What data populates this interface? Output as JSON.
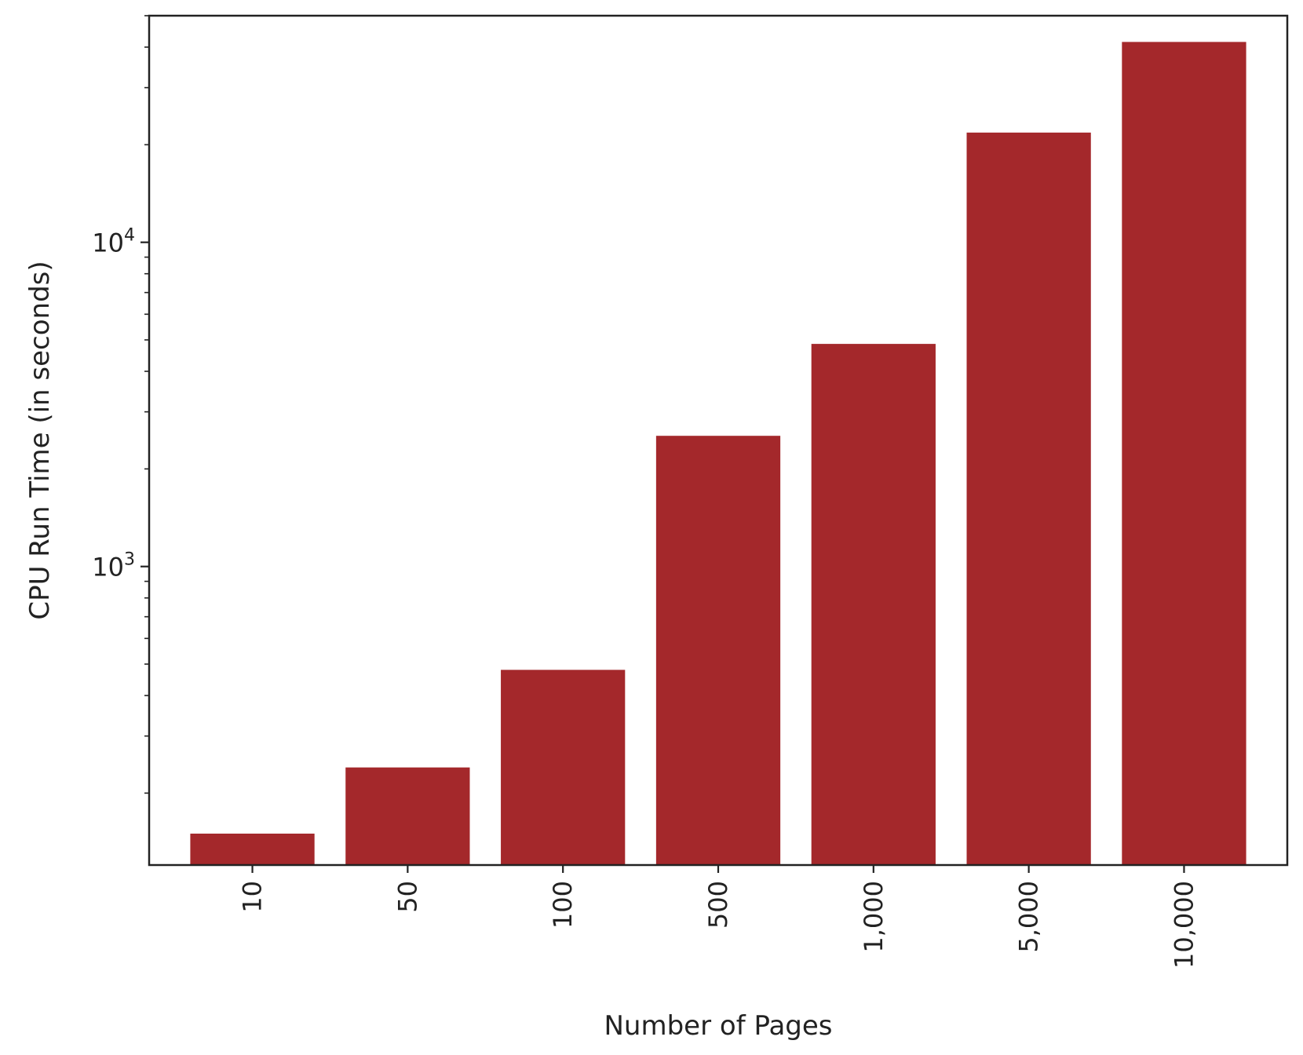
{
  "chart_data": {
    "type": "bar",
    "categories": [
      "10",
      "50",
      "100",
      "500",
      "1,000",
      "5,000",
      "10,000"
    ],
    "values": [
      150,
      240,
      480,
      2530,
      4860,
      21800,
      41500
    ],
    "xlabel": "Number of Pages",
    "ylabel": "CPU Run Time (in seconds)",
    "yscale": "log",
    "ylim": [
      120,
      50000
    ],
    "yticks": [
      {
        "base": "10",
        "exp": "3",
        "value": 1000
      },
      {
        "base": "10",
        "exp": "4",
        "value": 10000
      }
    ],
    "bar_color": "#a4282b",
    "grid": false,
    "xtick_rotation": "vertical"
  }
}
